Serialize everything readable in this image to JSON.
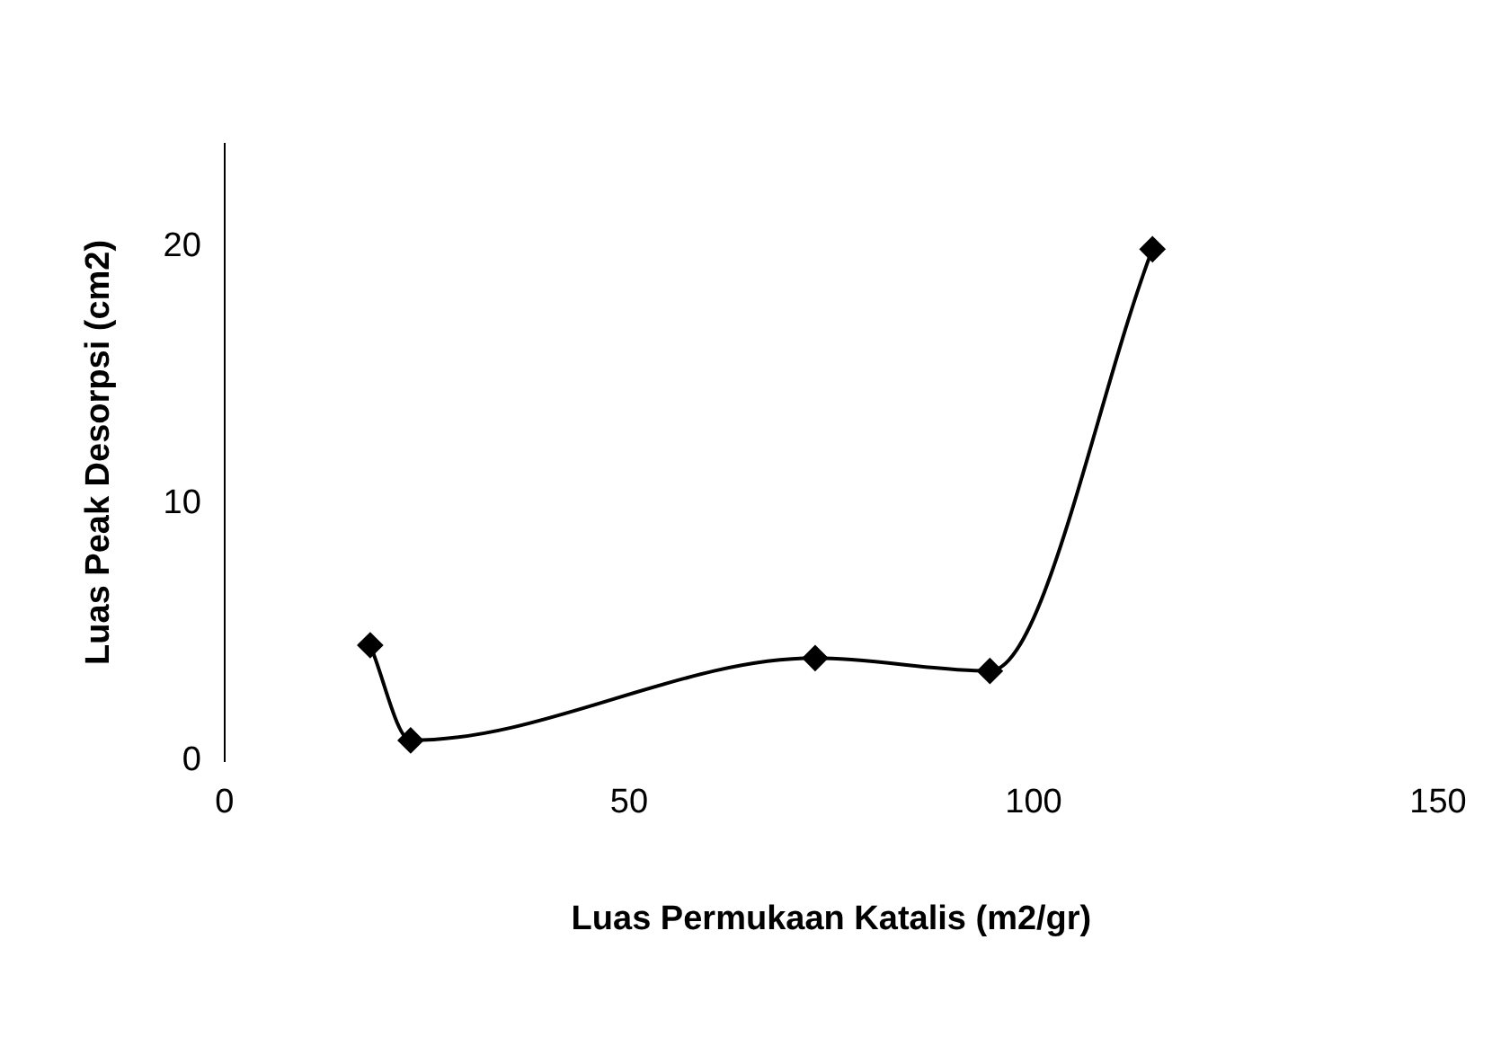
{
  "chart_data": {
    "type": "line",
    "xlabel": "Luas Permukaan Katalis (m2/gr)",
    "ylabel": "Luas Peak Desorpsi (cm2)",
    "x": [
      18,
      23,
      73,
      94.6,
      114.7
    ],
    "series": [
      {
        "color": "#000000",
        "values": [
          4.5,
          0.8,
          4.0,
          3.5,
          19.9
        ]
      }
    ],
    "xlim": [
      0,
      150
    ],
    "xticks": [
      0,
      50,
      100,
      150
    ],
    "ylim": [
      0,
      24
    ],
    "yticks": [
      0,
      10,
      20
    ],
    "grid": false,
    "legend": false,
    "marker": "diamond",
    "line_style": "solid"
  }
}
